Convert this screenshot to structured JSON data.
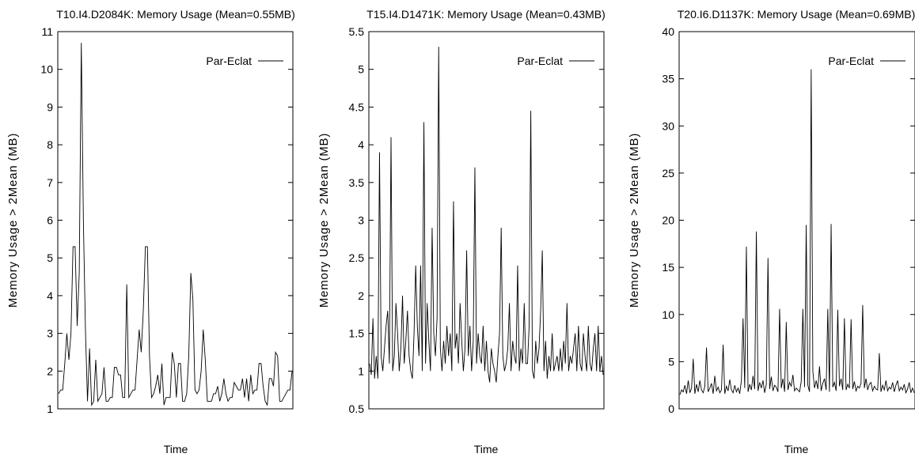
{
  "chart_data": [
    {
      "type": "line",
      "title": "T10.I4.D2084K: Memory Usage (Mean=0.55MB)",
      "xlabel": "Time",
      "ylabel": "Memory Usage > 2Mean (MB)",
      "ylim": [
        1,
        11
      ],
      "yticks": [
        "1",
        "2",
        "3",
        "4",
        "5",
        "6",
        "7",
        "8",
        "9",
        "10",
        "11"
      ],
      "legend": "top-right",
      "series": [
        {
          "name": "Par-Eclat",
          "values": [
            1.4,
            1.5,
            1.5,
            2.2,
            3.0,
            2.3,
            3.0,
            5.3,
            5.3,
            3.2,
            4.6,
            10.7,
            6.0,
            3.1,
            1.2,
            2.6,
            1.1,
            1.2,
            2.3,
            1.2,
            1.3,
            1.4,
            2.1,
            1.2,
            1.2,
            1.3,
            1.3,
            2.1,
            2.1,
            1.9,
            1.9,
            1.3,
            1.3,
            4.3,
            1.3,
            1.4,
            1.5,
            1.5,
            2.3,
            3.1,
            2.5,
            3.6,
            5.3,
            5.3,
            2.4,
            1.3,
            1.4,
            1.6,
            1.9,
            1.4,
            2.2,
            1.1,
            1.3,
            1.3,
            1.3,
            2.5,
            2.2,
            1.3,
            2.2,
            2.2,
            1.2,
            1.2,
            1.4,
            2.4,
            4.6,
            3.9,
            1.5,
            1.4,
            1.5,
            2.0,
            3.1,
            2.3,
            1.2,
            1.2,
            1.2,
            1.4,
            1.4,
            1.6,
            1.2,
            1.4,
            1.8,
            1.4,
            1.2,
            1.3,
            1.3,
            1.7,
            1.6,
            1.5,
            1.5,
            1.8,
            1.3,
            1.8,
            1.2,
            1.9,
            1.4,
            1.5,
            1.5,
            2.2,
            2.2,
            1.6,
            1.2,
            1.1,
            1.8,
            1.8,
            1.6,
            2.5,
            2.4,
            1.2,
            1.2,
            1.3,
            1.4,
            1.5,
            1.5,
            2.0
          ]
        }
      ]
    },
    {
      "type": "line",
      "title": "T15.I4.D1471K: Memory Usage (Mean=0.43MB)",
      "xlabel": "Time",
      "ylabel": "Memory Usage > 2Mean (MB)",
      "ylim": [
        0.5,
        5.5
      ],
      "yticks": [
        "0.5",
        "1",
        "1.5",
        "2",
        "2.5",
        "3",
        "3.5",
        "4",
        "4.5",
        "5",
        "5.5"
      ],
      "legend": "top-right",
      "series": [
        {
          "name": "Par-Eclat",
          "values": [
            1.1,
            0.95,
            1.7,
            0.9,
            1.2,
            0.9,
            3.9,
            1.2,
            1.0,
            1.3,
            1.6,
            1.8,
            1.1,
            4.1,
            1.0,
            1.2,
            1.9,
            1.5,
            1.0,
            1.3,
            2.0,
            1.1,
            1.4,
            1.8,
            1.2,
            1.0,
            0.9,
            1.5,
            2.4,
            1.6,
            1.2,
            2.4,
            1.0,
            4.3,
            1.1,
            1.9,
            1.4,
            1.0,
            2.9,
            1.5,
            1.2,
            1.7,
            5.3,
            1.3,
            1.0,
            1.4,
            1.1,
            1.6,
            1.2,
            1.5,
            1.0,
            3.25,
            1.3,
            1.5,
            1.1,
            1.9,
            1.4,
            1.0,
            1.3,
            2.6,
            1.2,
            1.6,
            1.0,
            1.4,
            3.7,
            1.1,
            1.5,
            1.2,
            1.1,
            1.6,
            1.0,
            1.4,
            1.0,
            0.85,
            1.3,
            1.1,
            1.0,
            0.85,
            1.2,
            1.5,
            2.9,
            1.2,
            1.0,
            1.1,
            1.3,
            1.9,
            1.0,
            1.4,
            1.2,
            1.1,
            2.4,
            1.0,
            1.3,
            1.1,
            1.9,
            1.1,
            1.1,
            1.6,
            4.45,
            1.0,
            0.9,
            1.4,
            1.1,
            1.3,
            1.8,
            2.6,
            1.0,
            1.4,
            0.9,
            1.2,
            1.0,
            1.5,
            1.0,
            1.1,
            1.2,
            1.0,
            1.3,
            1.0,
            1.4,
            1.1,
            1.9,
            1.0,
            1.2,
            1.1,
            1.3,
            1.5,
            1.0,
            1.6,
            1.1,
            1.0,
            1.5,
            1.2,
            1.0,
            1.6,
            1.1,
            1.0,
            1.3,
            1.5,
            1.0,
            1.6,
            1.0,
            1.2,
            0.95
          ]
        }
      ]
    },
    {
      "type": "line",
      "title": "T20.I6.D1137K: Memory Usage (Mean=0.69MB)",
      "xlabel": "Time",
      "ylabel": "Memory Usage > 2Mean (MB)",
      "ylim": [
        0,
        40
      ],
      "yticks": [
        "0",
        "5",
        "10",
        "15",
        "20",
        "25",
        "30",
        "35",
        "40"
      ],
      "legend": "top-right",
      "series": [
        {
          "name": "Par-Eclat",
          "values": [
            1.5,
            2.0,
            1.8,
            2.5,
            1.6,
            3.0,
            1.7,
            2.2,
            5.3,
            1.6,
            2.6,
            1.8,
            3.0,
            2.0,
            1.7,
            2.4,
            6.5,
            1.8,
            2.2,
            2.7,
            1.6,
            3.5,
            1.9,
            2.3,
            1.7,
            2.0,
            6.8,
            1.6,
            2.4,
            1.9,
            3.1,
            2.0,
            1.7,
            2.5,
            1.8,
            2.2,
            1.6,
            3.0,
            9.6,
            2.2,
            17.2,
            1.8,
            2.6,
            2.0,
            3.5,
            2.1,
            18.8,
            1.9,
            2.8,
            2.2,
            3.0,
            1.7,
            2.6,
            16.0,
            2.1,
            3.4,
            1.9,
            2.5,
            2.3,
            1.8,
            10.6,
            2.2,
            3.2,
            1.8,
            9.2,
            2.0,
            2.8,
            2.4,
            3.6,
            1.9,
            2.2,
            2.0,
            1.8,
            2.9,
            10.6,
            2.3,
            19.5,
            2.5,
            1.8,
            36.0,
            4.0,
            2.2,
            3.0,
            2.1,
            4.5,
            1.9,
            2.7,
            3.2,
            2.0,
            10.6,
            1.8,
            19.6,
            2.3,
            2.8,
            1.9,
            10.5,
            2.4,
            3.2,
            2.0,
            9.6,
            2.0,
            2.6,
            2.2,
            9.5,
            2.1,
            2.9,
            1.9,
            2.4,
            2.2,
            2.7,
            11.0,
            2.2,
            3.2,
            2.0,
            2.6,
            2.8,
            1.9,
            2.4,
            2.1,
            2.0,
            5.9,
            1.8,
            2.5,
            2.0,
            3.0,
            1.9,
            2.3,
            2.1,
            2.8,
            1.8,
            2.5,
            3.0,
            1.9,
            2.3,
            2.0,
            2.6,
            1.7,
            2.1,
            2.8,
            1.7,
            2.2,
            1.7
          ]
        }
      ]
    }
  ]
}
